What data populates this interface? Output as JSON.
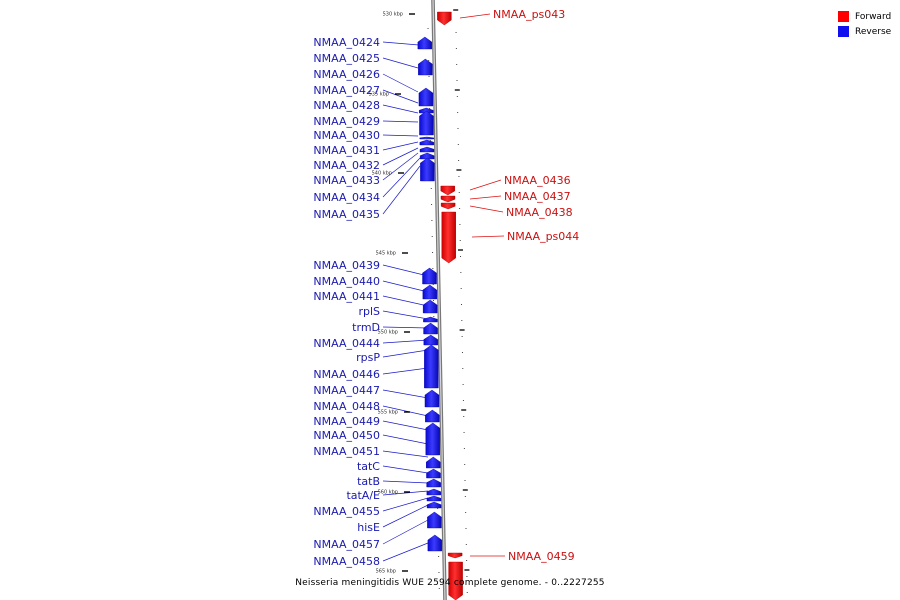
{
  "caption": "Neisseria meningitidis WUE 2594 complete genome. - 0..2227255",
  "legend": [
    {
      "label": "Forward",
      "color": "#ff0000"
    },
    {
      "label": "Reverse",
      "color": "#1010ee"
    }
  ],
  "ticks": [
    "530 kbp",
    "535 kbp",
    "540 kbp",
    "545 kbp",
    "550 kbp",
    "555 kbp",
    "560 kbp",
    "565 kbp"
  ],
  "reverse_genes": [
    "NMAA_0424",
    "NMAA_0425",
    "NMAA_0426",
    "NMAA_0427",
    "NMAA_0428",
    "NMAA_0429",
    "NMAA_0430",
    "NMAA_0431",
    "NMAA_0432",
    "NMAA_0433",
    "NMAA_0434",
    "NMAA_0435",
    "NMAA_0439",
    "NMAA_0440",
    "NMAA_0441",
    "rplS",
    "trmD",
    "NMAA_0444",
    "rpsP",
    "NMAA_0446",
    "NMAA_0447",
    "NMAA_0448",
    "NMAA_0449",
    "NMAA_0450",
    "NMAA_0451",
    "tatC",
    "tatB",
    "tatA/E",
    "NMAA_0455",
    "hisE",
    "NMAA_0457",
    "NMAA_0458"
  ],
  "forward_genes": [
    "NMAA_ps043",
    "NMAA_0436",
    "NMAA_0437",
    "NMAA_0438",
    "NMAA_ps044",
    "NMAA_0459"
  ]
}
